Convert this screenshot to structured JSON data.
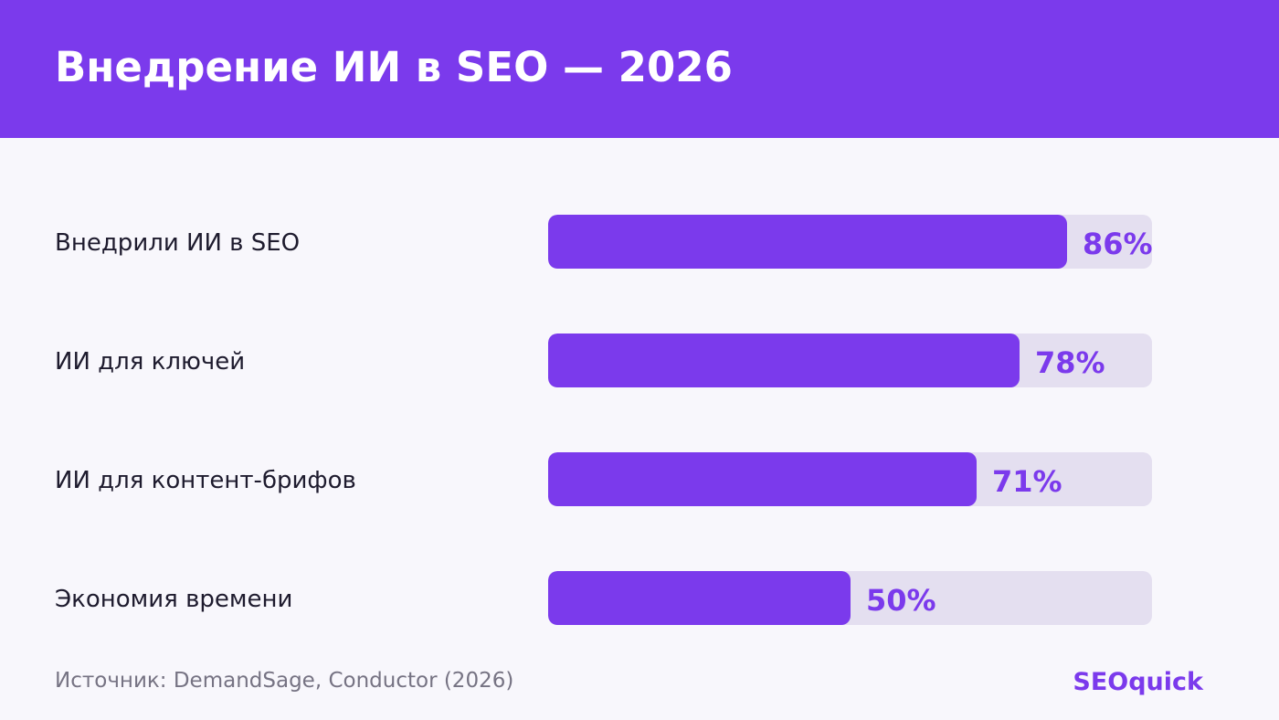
{
  "header": {
    "title": "Внедрение ИИ в SEO — 2026"
  },
  "colors": {
    "accent": "#7b3aec",
    "track": "#e4dff0",
    "label": "#1e1b2e",
    "muted": "#767383",
    "background": "#f8f7fc"
  },
  "chart_data": {
    "type": "bar",
    "orientation": "horizontal",
    "title": "Внедрение ИИ в SEO — 2026",
    "categories": [
      "Внедрили ИИ в SEO",
      "ИИ для ключей",
      "ИИ для контент-брифов",
      "Экономия времени"
    ],
    "values": [
      86,
      78,
      71,
      50
    ],
    "value_labels": [
      "86%",
      "78%",
      "71%",
      "50%"
    ],
    "xlim": [
      0,
      100
    ],
    "grid": false,
    "legend": "none"
  },
  "footer": {
    "source": "Источник: DemandSage, Conductor (2026)",
    "brand": "SEOquick"
  }
}
